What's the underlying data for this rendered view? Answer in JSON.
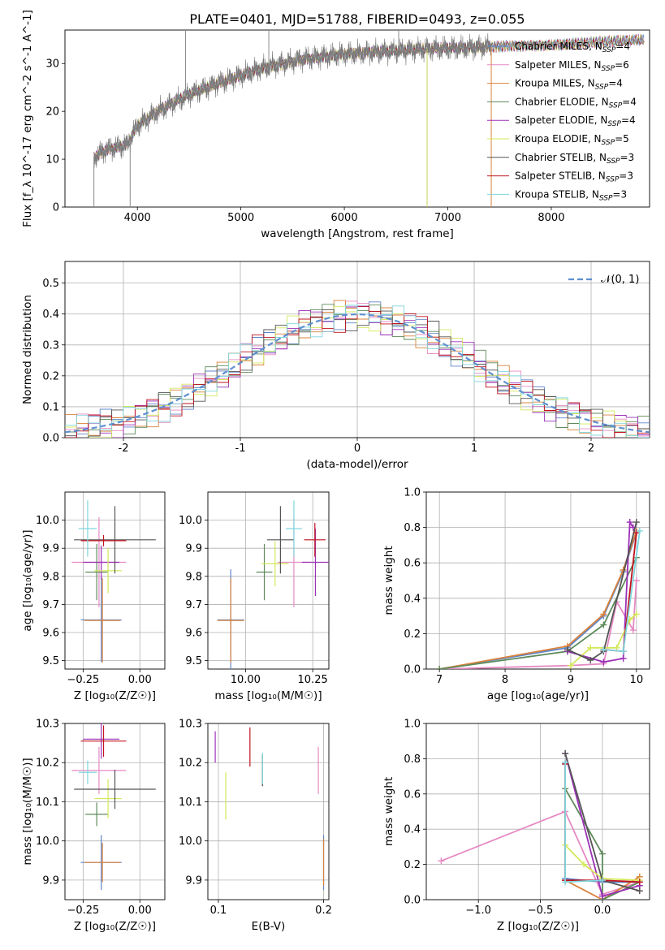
{
  "title": "PLATE=0401, MJD=51788, FIBERID=0493, z=0.055",
  "models": [
    {
      "name": "Chabrier MILES, N",
      "sub": "SSP",
      "n": "=4",
      "color": "#5f85c9"
    },
    {
      "name": "Salpeter MILES, N",
      "sub": "SSP",
      "n": "=6",
      "color": "#e58ac3"
    },
    {
      "name": "Kroupa MILES, N",
      "sub": "SSP",
      "n": "=4",
      "color": "#d9823b"
    },
    {
      "name": "Chabrier ELODIE, N",
      "sub": "SSP",
      "n": "=4",
      "color": "#5e8a5a"
    },
    {
      "name": "Salpeter ELODIE, N",
      "sub": "SSP",
      "n": "=4",
      "color": "#9b30b7"
    },
    {
      "name": "Kroupa ELODIE, N",
      "sub": "SSP",
      "n": "=5",
      "color": "#d3e85a"
    },
    {
      "name": "Chabrier STELIB, N",
      "sub": "SSP",
      "n": "=3",
      "color": "#555555"
    },
    {
      "name": "Salpeter STELIB, N",
      "sub": "SSP",
      "n": "=3",
      "color": "#c1121f"
    },
    {
      "name": "Kroupa STELIB, N",
      "sub": "SSP",
      "n": "=3",
      "color": "#7fd6dd"
    }
  ],
  "chart_data": [
    {
      "id": "spectrum",
      "type": "line",
      "xlabel": "wavelength [Angstrom, rest frame]",
      "ylabel": "Flux [f_λ 10^-17 erg cm^-2 s^-1 A^-1]",
      "xlim": [
        3300,
        8950
      ],
      "ylim": [
        0,
        37
      ],
      "xticks": [
        4000,
        5000,
        6000,
        7000,
        8000
      ],
      "yticks": [
        0,
        10,
        20,
        30
      ],
      "continuum": {
        "x": [
          3580,
          3700,
          3900,
          4000,
          4200,
          4500,
          4800,
          5200,
          5600,
          6000,
          6400,
          6800,
          7200,
          7600,
          8000,
          8400,
          8900
        ],
        "y": [
          10.5,
          12,
          13,
          17,
          20,
          23.5,
          26,
          29,
          31,
          32,
          32.5,
          33,
          33.3,
          33.8,
          34,
          34.4,
          34.8
        ]
      },
      "data_range": [
        3580,
        7420
      ],
      "model_range": [
        3580,
        8900
      ],
      "spikes": [
        {
          "x": 3580,
          "y": 0
        },
        {
          "x": 3930,
          "y": 0
        },
        {
          "x": 4465,
          "y": 37
        },
        {
          "x": 5270,
          "y": 37
        },
        {
          "x": 6525,
          "y": 37
        },
        {
          "x": 6800,
          "y": 0
        },
        {
          "x": 7420,
          "y": 0
        }
      ]
    },
    {
      "id": "residuals",
      "type": "histogram",
      "xlabel": "(data-model)/error",
      "ylabel": "Normed distribution",
      "xlim": [
        -2.5,
        2.5
      ],
      "ylim": [
        0,
        0.57
      ],
      "xticks": [
        -2,
        -1,
        0,
        1,
        2
      ],
      "yticks": [
        0.0,
        0.1,
        0.2,
        0.3,
        0.4,
        0.5
      ],
      "bin_width": 0.1,
      "legend": "𝒩(0, 1)"
    },
    {
      "id": "age_vs_Z",
      "type": "scatter",
      "xlabel": "Z [log₁₀(Z/Z☉)]",
      "ylabel": "age  [log₁₀(age/yr)]",
      "xlim": [
        -0.33,
        0.11
      ],
      "ylim": [
        9.47,
        10.1
      ],
      "xticks": [
        -0.25,
        0.0
      ],
      "xticklabels": [
        "−0.25",
        "0.00"
      ],
      "yticks": [
        9.5,
        9.6,
        9.7,
        9.8,
        9.9,
        10.0
      ],
      "points": [
        {
          "m": 0,
          "x": -0.17,
          "y": 9.645,
          "xe": 0.09,
          "ye": 0.15
        },
        {
          "m": 1,
          "x": -0.18,
          "y": 9.85,
          "xe": 0.12,
          "ye": 0.16
        },
        {
          "m": 2,
          "x": -0.165,
          "y": 9.643,
          "xe": 0.08,
          "ye": 0.15
        },
        {
          "m": 3,
          "x": -0.19,
          "y": 9.815,
          "xe": 0.05,
          "ye": 0.1
        },
        {
          "m": 4,
          "x": -0.17,
          "y": 9.85,
          "xe": 0.08,
          "ye": 0.06
        },
        {
          "m": 5,
          "x": -0.14,
          "y": 9.82,
          "xe": 0.06,
          "ye": 0.08
        },
        {
          "m": 6,
          "x": -0.11,
          "y": 9.93,
          "xe": 0.18,
          "ye": 0.12
        },
        {
          "m": 7,
          "x": -0.16,
          "y": 9.927,
          "xe": 0.1,
          "ye": 0.02
        },
        {
          "m": 8,
          "x": -0.23,
          "y": 9.97,
          "xe": 0.04,
          "ye": 0.1
        }
      ]
    },
    {
      "id": "age_vs_mass",
      "type": "scatter",
      "xlabel": "mass [log₁₀(M/M☉)]",
      "ylabel": "",
      "xlim": [
        9.86,
        10.31
      ],
      "ylim": [
        9.47,
        10.1
      ],
      "xticks": [
        10.0,
        10.25
      ],
      "xticklabels": [
        "10.00",
        "10.25"
      ],
      "yticks": [
        9.5,
        9.6,
        9.7,
        9.8,
        9.9,
        10.0
      ],
      "points": [
        {
          "m": 0,
          "x": 9.945,
          "y": 9.645,
          "xe": 0.05,
          "ye": 0.18
        },
        {
          "m": 1,
          "x": 10.18,
          "y": 9.85,
          "xe": 0.06,
          "ye": 0.16
        },
        {
          "m": 2,
          "x": 9.945,
          "y": 9.643,
          "xe": 0.05,
          "ye": 0.15
        },
        {
          "m": 3,
          "x": 10.07,
          "y": 9.815,
          "xe": 0.03,
          "ye": 0.1
        },
        {
          "m": 4,
          "x": 10.26,
          "y": 9.85,
          "xe": 0.05,
          "ye": 0.12
        },
        {
          "m": 5,
          "x": 10.11,
          "y": 9.845,
          "xe": 0.05,
          "ye": 0.08
        },
        {
          "m": 6,
          "x": 10.13,
          "y": 9.93,
          "xe": 0.05,
          "ye": 0.12
        },
        {
          "m": 7,
          "x": 10.258,
          "y": 9.93,
          "xe": 0.04,
          "ye": 0.06
        },
        {
          "m": 8,
          "x": 10.18,
          "y": 9.97,
          "xe": 0.03,
          "ye": 0.1
        }
      ]
    },
    {
      "id": "mass_weight_vs_age",
      "type": "line",
      "xlabel": "age  [log₁₀(age/yr)]",
      "ylabel": "mass weight",
      "xlim": [
        6.8,
        10.2
      ],
      "ylim": [
        0,
        1.0
      ],
      "xticks": [
        7,
        8,
        9,
        10
      ],
      "yticks": [
        0.0,
        0.2,
        0.4,
        0.6,
        0.8,
        1.0
      ],
      "series": [
        {
          "m": 0,
          "x": [
            7.0,
            8.95,
            9.5,
            9.8,
            10.0
          ],
          "y": [
            0.0,
            0.12,
            0.3,
            0.55,
            0.77
          ]
        },
        {
          "m": 1,
          "x": [
            7.0,
            9.0,
            9.5,
            9.7,
            9.95,
            10.0
          ],
          "y": [
            0.0,
            0.02,
            0.03,
            0.38,
            0.22,
            0.5
          ]
        },
        {
          "m": 2,
          "x": [
            7.0,
            8.95,
            9.5,
            9.8,
            10.0
          ],
          "y": [
            0.0,
            0.13,
            0.31,
            0.56,
            0.78
          ]
        },
        {
          "m": 3,
          "x": [
            7.0,
            8.95,
            9.5,
            10.0
          ],
          "y": [
            0.0,
            0.1,
            0.25,
            0.63
          ]
        },
        {
          "m": 4,
          "x": [
            8.95,
            9.5,
            9.8,
            9.9,
            9.95
          ],
          "y": [
            0.1,
            0.04,
            0.06,
            0.83,
            0.8
          ]
        },
        {
          "m": 5,
          "x": [
            9.0,
            9.3,
            9.7,
            9.9,
            10.0
          ],
          "y": [
            0.02,
            0.12,
            0.12,
            0.28,
            0.31
          ]
        },
        {
          "m": 6,
          "x": [
            8.95,
            9.3,
            9.5,
            10.0
          ],
          "y": [
            0.11,
            0.05,
            0.1,
            0.83
          ]
        },
        {
          "m": 7,
          "x": [
            9.5,
            9.8,
            10.0
          ],
          "y": [
            0.11,
            0.1,
            0.77
          ]
        },
        {
          "m": 8,
          "x": [
            9.5,
            9.8,
            10.05
          ],
          "y": [
            0.11,
            0.1,
            0.78
          ]
        }
      ]
    },
    {
      "id": "mass_vs_Z",
      "type": "scatter",
      "xlabel": "Z [log₁₀(Z/Z☉)]",
      "ylabel": "mass [log₁₀(M/M☉)]",
      "xlim": [
        -0.33,
        0.11
      ],
      "ylim": [
        9.85,
        10.3
      ],
      "xticks": [
        -0.25,
        0.0
      ],
      "xticklabels": [
        "−0.25",
        "0.00"
      ],
      "yticks": [
        9.9,
        10.0,
        10.1,
        10.2,
        10.3
      ],
      "points": [
        {
          "m": 0,
          "x": -0.17,
          "y": 9.945,
          "xe": 0.09,
          "ye": 0.07
        },
        {
          "m": 1,
          "x": -0.18,
          "y": 10.18,
          "xe": 0.12,
          "ye": 0.06
        },
        {
          "m": 2,
          "x": -0.165,
          "y": 9.945,
          "xe": 0.08,
          "ye": 0.05
        },
        {
          "m": 3,
          "x": -0.19,
          "y": 10.068,
          "xe": 0.05,
          "ye": 0.03
        },
        {
          "m": 4,
          "x": -0.17,
          "y": 10.26,
          "xe": 0.08,
          "ye": 0.05
        },
        {
          "m": 5,
          "x": -0.14,
          "y": 10.108,
          "xe": 0.06,
          "ye": 0.05
        },
        {
          "m": 6,
          "x": -0.11,
          "y": 10.132,
          "xe": 0.18,
          "ye": 0.05
        },
        {
          "m": 7,
          "x": -0.16,
          "y": 10.255,
          "xe": 0.1,
          "ye": 0.04
        },
        {
          "m": 8,
          "x": -0.23,
          "y": 10.175,
          "xe": 0.04,
          "ye": 0.03
        }
      ]
    },
    {
      "id": "mass_vs_ebv",
      "type": "scatter",
      "xlabel": "E(B-V)",
      "ylabel": "",
      "xlim": [
        0.09,
        0.205
      ],
      "ylim": [
        9.85,
        10.3
      ],
      "xticks": [
        0.1,
        0.2
      ],
      "xticklabels": [
        "0.1",
        "0.2"
      ],
      "yticks": [
        9.9,
        10.0,
        10.1,
        10.2,
        10.3
      ],
      "points": [
        {
          "m": 0,
          "x": 0.2,
          "y": 9.945,
          "xe": 0.0,
          "ye": 0.07
        },
        {
          "m": 1,
          "x": 0.195,
          "y": 10.18,
          "xe": 0.0,
          "ye": 0.06
        },
        {
          "m": 2,
          "x": 0.2,
          "y": 9.945,
          "xe": 0.0,
          "ye": 0.06
        },
        {
          "m": 3,
          "x": 0.142,
          "y": 10.18,
          "xe": 0.0,
          "ye": 0.04
        },
        {
          "m": 4,
          "x": 0.097,
          "y": 10.24,
          "xe": 0.0,
          "ye": 0.04
        },
        {
          "m": 5,
          "x": 0.107,
          "y": 10.115,
          "xe": 0.0,
          "ye": 0.06
        },
        {
          "m": 6,
          "x": 0.142,
          "y": 10.18,
          "xe": 0.0,
          "ye": 0.04
        },
        {
          "m": 7,
          "x": 0.13,
          "y": 10.24,
          "xe": 0.0,
          "ye": 0.05
        },
        {
          "m": 8,
          "x": 0.142,
          "y": 10.185,
          "xe": 0.0,
          "ye": 0.04
        }
      ]
    },
    {
      "id": "mass_weight_vs_Z",
      "type": "line",
      "xlabel": "Z [log₁₀(Z/Z☉)]",
      "ylabel": "mass weight",
      "xlim": [
        -1.42,
        0.38
      ],
      "ylim": [
        0,
        1.0
      ],
      "xticks": [
        -1.0,
        -0.5,
        0.0
      ],
      "xticklabels": [
        "−1.0",
        "−0.5",
        "0.0"
      ],
      "yticks": [
        0.0,
        0.2,
        0.4,
        0.6,
        0.8,
        1.0
      ],
      "series": [
        {
          "m": 0,
          "x": [
            -0.3,
            -0.3,
            0.0,
            0.3
          ],
          "y": [
            0.77,
            0.12,
            0.1,
            0.1
          ]
        },
        {
          "m": 1,
          "x": [
            -1.3,
            -0.3,
            0.0,
            0.3,
            0.3
          ],
          "y": [
            0.22,
            0.5,
            0.03,
            0.1,
            0.05
          ]
        },
        {
          "m": 2,
          "x": [
            -0.3,
            -0.3,
            0.0,
            0.3
          ],
          "y": [
            0.78,
            0.11,
            0.0,
            0.13
          ]
        },
        {
          "m": 3,
          "x": [
            -0.3,
            0.0,
            0.0,
            0.3
          ],
          "y": [
            0.63,
            0.26,
            0.0,
            0.1
          ]
        },
        {
          "m": 4,
          "x": [
            -0.3,
            0.0,
            0.3
          ],
          "y": [
            0.83,
            0.02,
            0.08
          ]
        },
        {
          "m": 5,
          "x": [
            -0.3,
            -0.15,
            0.0,
            0.3
          ],
          "y": [
            0.31,
            0.2,
            0.12,
            0.11
          ]
        },
        {
          "m": 6,
          "x": [
            -0.3,
            0.0,
            0.3
          ],
          "y": [
            0.83,
            0.11,
            0.05
          ]
        },
        {
          "m": 7,
          "x": [
            -0.3,
            -0.3,
            0.0,
            0.3
          ],
          "y": [
            0.77,
            0.11,
            0.11,
            0.1
          ]
        },
        {
          "m": 8,
          "x": [
            -0.3,
            -0.3,
            0.0
          ],
          "y": [
            0.78,
            0.1,
            0.11
          ]
        }
      ]
    }
  ]
}
